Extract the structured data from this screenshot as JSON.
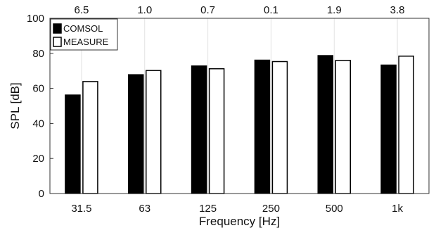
{
  "chart_data": {
    "type": "bar",
    "xlabel": "Frequency [Hz]",
    "ylabel": "SPL [dB]",
    "ylim": [
      0,
      100
    ],
    "yticks": [
      0,
      20,
      40,
      60,
      80,
      100
    ],
    "grid": "vertical-only",
    "legend_position": "top-left",
    "categories": [
      "31.5",
      "63",
      "125",
      "250",
      "500",
      "1k"
    ],
    "top_labels": [
      "6.5",
      "1.0",
      "0.7",
      "0.1",
      "1.9",
      "3.8"
    ],
    "series": [
      {
        "name": "COMSOL",
        "fill": "#000000",
        "values": [
          56.2,
          67.8,
          72.8,
          76.1,
          78.7,
          73.3
        ]
      },
      {
        "name": "MEASURE",
        "fill": "#ffffff",
        "values": [
          63.9,
          70.2,
          71.2,
          75.3,
          76.0,
          78.4
        ]
      }
    ]
  }
}
